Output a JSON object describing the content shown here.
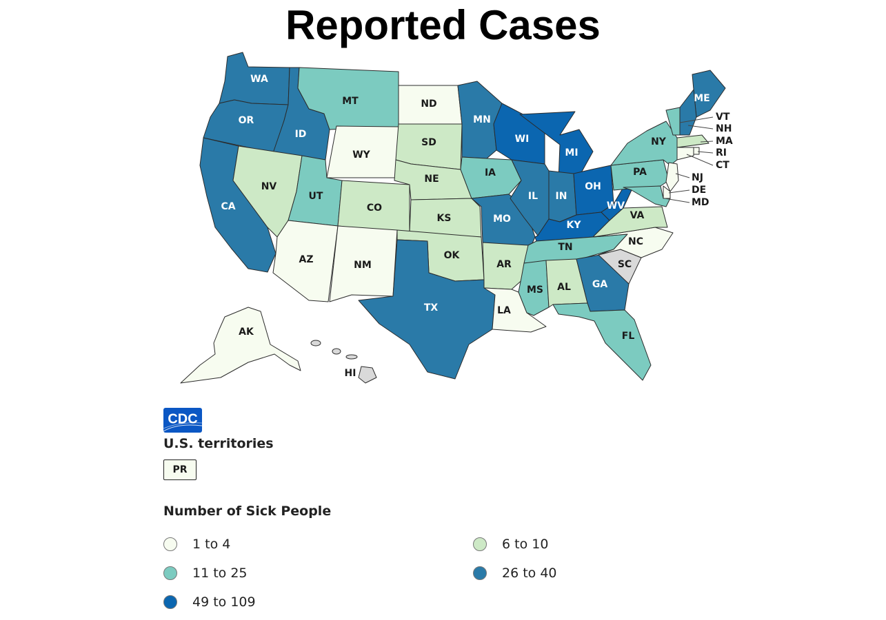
{
  "title": "Reported Cases",
  "colors": {
    "c1": "#f7fcf0",
    "c2": "#cde9c6",
    "c3": "#7ccbc0",
    "c4": "#2a7aa8",
    "c5": "#0b66b0",
    "nodata": "#d9d9d9"
  },
  "states": {
    "WA": "c4",
    "OR": "c4",
    "CA": "c4",
    "ID": "c4",
    "NV": "c2",
    "UT": "c3",
    "AZ": "c1",
    "MT": "c3",
    "WY": "c1",
    "CO": "c2",
    "NM": "c1",
    "ND": "c1",
    "SD": "c2",
    "NE": "c2",
    "KS": "c2",
    "OK": "c2",
    "TX": "c4",
    "MN": "c4",
    "IA": "c3",
    "MO": "c4",
    "AR": "c2",
    "LA": "c1",
    "WI": "c5",
    "IL": "c4",
    "MI": "c5",
    "IN": "c4",
    "OH": "c5",
    "KY": "c5",
    "TN": "c3",
    "MS": "c3",
    "AL": "c2",
    "GA": "c4",
    "FL": "c3",
    "SC": "nodata",
    "NC": "c1",
    "VA": "c2",
    "WV": "c5",
    "PA": "c3",
    "NY": "c3",
    "ME": "c4",
    "VT": "c3",
    "NH": "c4",
    "MA": "c2",
    "RI": "c1",
    "CT": "c1",
    "NJ": "c1",
    "DE": "c1",
    "MD": "c3",
    "AK": "c1",
    "HI": "nodata"
  },
  "labels": {
    "WA": "WA",
    "OR": "OR",
    "CA": "CA",
    "ID": "ID",
    "NV": "NV",
    "UT": "UT",
    "AZ": "AZ",
    "MT": "MT",
    "WY": "WY",
    "CO": "CO",
    "NM": "NM",
    "ND": "ND",
    "SD": "SD",
    "NE": "NE",
    "KS": "KS",
    "OK": "OK",
    "TX": "TX",
    "MN": "MN",
    "IA": "IA",
    "MO": "MO",
    "AR": "AR",
    "LA": "LA",
    "WI": "WI",
    "IL": "IL",
    "MI": "MI",
    "IN": "IN",
    "OH": "OH",
    "KY": "KY",
    "TN": "TN",
    "MS": "MS",
    "AL": "AL",
    "GA": "GA",
    "FL": "FL",
    "SC": "SC",
    "NC": "NC",
    "VA": "VA",
    "WV": "WV",
    "PA": "PA",
    "NY": "NY",
    "ME": "ME",
    "VT": "VT",
    "NH": "NH",
    "MA": "MA",
    "RI": "RI",
    "CT": "CT",
    "NJ": "NJ",
    "DE": "DE",
    "MD": "MD",
    "AK": "AK",
    "HI": "HI"
  },
  "logo": {
    "text": "CDC"
  },
  "territories": {
    "title": "U.S. territories",
    "items": [
      {
        "label": "PR",
        "level": "c1"
      }
    ]
  },
  "legend": {
    "title": "Number of Sick People",
    "items": [
      {
        "label": "1 to 4",
        "level": "c1"
      },
      {
        "label": "6 to 10",
        "level": "c2"
      },
      {
        "label": "11 to 25",
        "level": "c3"
      },
      {
        "label": "26 to 40",
        "level": "c4"
      },
      {
        "label": "49 to 109",
        "level": "c5"
      }
    ]
  }
}
